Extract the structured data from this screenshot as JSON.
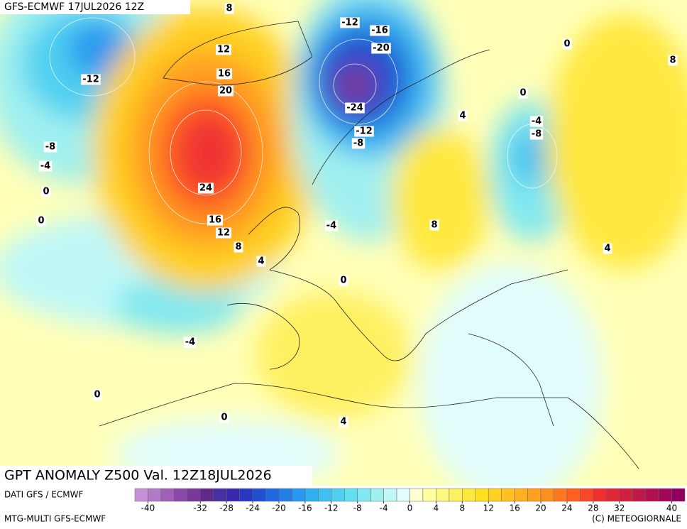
{
  "header": {
    "title": "GFS-ECMWF  17JUL2026 12Z"
  },
  "map": {
    "contour_labels": [
      8,
      12,
      16,
      20,
      24,
      16,
      12,
      8,
      4,
      -12,
      -16,
      -20,
      -24,
      -12,
      -8,
      -12,
      -8,
      -4,
      0,
      0,
      -4,
      8,
      0,
      -4,
      0,
      0,
      4,
      0,
      8,
      0,
      4,
      -4,
      -8,
      4
    ]
  },
  "footer": {
    "title": "GPT ANOMALY Z500 Val. 12Z18JUL2026",
    "source": "DATI GFS / ECMWF",
    "model": "MTG-MULTI GFS-ECMWF",
    "credit": "(C) METEOGIORNALE"
  },
  "colorbar": {
    "range": [
      -42,
      42
    ],
    "colors": [
      "#c890d8",
      "#b478c8",
      "#a060b8",
      "#8c48a8",
      "#783898",
      "#602888",
      "#4830a0",
      "#3828b0",
      "#2838c0",
      "#2050d0",
      "#2068e0",
      "#2080e8",
      "#2898f0",
      "#30b0f0",
      "#40c0f0",
      "#50d0f0",
      "#60e0f0",
      "#80e8f0",
      "#a0f0f0",
      "#c0f8f8",
      "#e0fcfc",
      "#ffffd0",
      "#ffffa0",
      "#fff880",
      "#fff060",
      "#ffe840",
      "#ffe020",
      "#ffd020",
      "#ffc020",
      "#ffb020",
      "#ffa020",
      "#ff9020",
      "#ff7820",
      "#ff6020",
      "#f84828",
      "#f03030",
      "#e02838",
      "#d02040",
      "#c01848",
      "#b01050",
      "#a00858",
      "#900060"
    ],
    "ticks": [
      -40,
      -32,
      -28,
      -24,
      -20,
      -16,
      -12,
      -8,
      -4,
      0,
      4,
      8,
      12,
      16,
      20,
      24,
      28,
      32,
      40
    ]
  }
}
